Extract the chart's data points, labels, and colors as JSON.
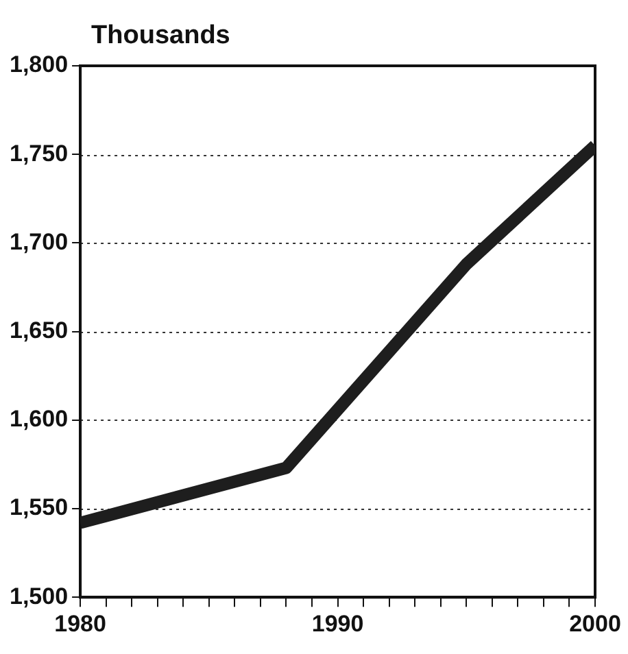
{
  "chart_data": {
    "type": "line",
    "ylabel": "Thousands",
    "x": [
      1980,
      1988,
      1995,
      2000
    ],
    "series": [
      {
        "color": "#1e1e1e",
        "values": [
          1542,
          1573,
          1688,
          1755
        ]
      }
    ],
    "xlim": [
      1980,
      2000
    ],
    "xticks": [
      {
        "value": 1980,
        "label": "1980"
      },
      {
        "value": 1981,
        "label": null
      },
      {
        "value": 1982,
        "label": null
      },
      {
        "value": 1983,
        "label": null
      },
      {
        "value": 1984,
        "label": null
      },
      {
        "value": 1985,
        "label": null
      },
      {
        "value": 1986,
        "label": null
      },
      {
        "value": 1987,
        "label": null
      },
      {
        "value": 1988,
        "label": null
      },
      {
        "value": 1989,
        "label": null
      },
      {
        "value": 1990,
        "label": "1990"
      },
      {
        "value": 1991,
        "label": null
      },
      {
        "value": 1992,
        "label": null
      },
      {
        "value": 1993,
        "label": null
      },
      {
        "value": 1994,
        "label": null
      },
      {
        "value": 1995,
        "label": null
      },
      {
        "value": 1996,
        "label": null
      },
      {
        "value": 1997,
        "label": null
      },
      {
        "value": 1998,
        "label": null
      },
      {
        "value": 1999,
        "label": null
      },
      {
        "value": 2000,
        "label": "2000"
      }
    ],
    "ylim": [
      1500,
      1800
    ],
    "yticks": [
      {
        "value": 1500,
        "label": "1,500"
      },
      {
        "value": 1550,
        "label": "1,550"
      },
      {
        "value": 1600,
        "label": "1,600"
      },
      {
        "value": 1650,
        "label": "1,650"
      },
      {
        "value": 1700,
        "label": "1,700"
      },
      {
        "value": 1750,
        "label": "1,750"
      },
      {
        "value": 1800,
        "label": "1,800"
      }
    ],
    "grid": "y",
    "marker": "none",
    "line_style": "solid",
    "legend": false
  }
}
